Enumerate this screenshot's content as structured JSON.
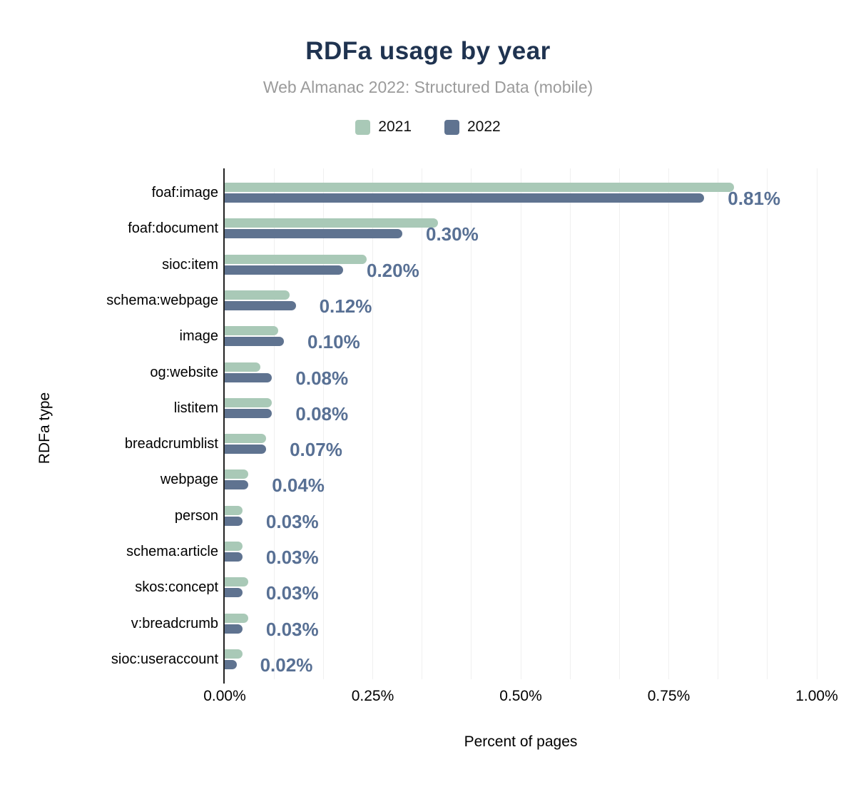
{
  "header": {
    "title": "RDFa usage by year",
    "subtitle": "Web Almanac 2022: Structured Data (mobile)"
  },
  "legend": [
    {
      "label": "2021",
      "color": "#a9c9b7"
    },
    {
      "label": "2022",
      "color": "#5f7390"
    }
  ],
  "colors": {
    "series_2021": "#a9c9b7",
    "series_2022": "#5f7390",
    "title": "#1f3350",
    "subtitle": "#9b9b9b",
    "value_label": "#587094",
    "grid": "#f0f0f0",
    "axis": "#222222"
  },
  "chart_data": {
    "type": "bar",
    "orientation": "horizontal",
    "title": "RDFa usage by year",
    "subtitle": "Web Almanac 2022: Structured Data (mobile)",
    "xlabel": "Percent of pages",
    "ylabel": "RDFa type",
    "xlim": [
      0,
      1.0
    ],
    "x_ticks": [
      "0.00%",
      "0.25%",
      "0.50%",
      "0.75%",
      "1.00%"
    ],
    "x_tick_values": [
      0,
      0.25,
      0.5,
      0.75,
      1.0
    ],
    "grid": "vertical minor gridlines every 1/12 percent, on",
    "legend_position": "top center",
    "categories": [
      "foaf:image",
      "foaf:document",
      "sioc:item",
      "schema:webpage",
      "image",
      "og:website",
      "listitem",
      "breadcrumblist",
      "webpage",
      "person",
      "schema:article",
      "skos:concept",
      "v:breadcrumb",
      "sioc:useraccount"
    ],
    "series": [
      {
        "name": "2021",
        "values": [
          0.86,
          0.36,
          0.24,
          0.11,
          0.09,
          0.06,
          0.08,
          0.07,
          0.04,
          0.03,
          0.03,
          0.04,
          0.04,
          0.03
        ]
      },
      {
        "name": "2022",
        "values": [
          0.81,
          0.3,
          0.2,
          0.12,
          0.1,
          0.08,
          0.08,
          0.07,
          0.04,
          0.03,
          0.03,
          0.03,
          0.03,
          0.02
        ]
      }
    ],
    "value_labels": [
      "0.81%",
      "0.30%",
      "0.20%",
      "0.12%",
      "0.10%",
      "0.08%",
      "0.08%",
      "0.07%",
      "0.04%",
      "0.03%",
      "0.03%",
      "0.03%",
      "0.03%",
      "0.02%"
    ],
    "value_labels_series": "2022"
  }
}
